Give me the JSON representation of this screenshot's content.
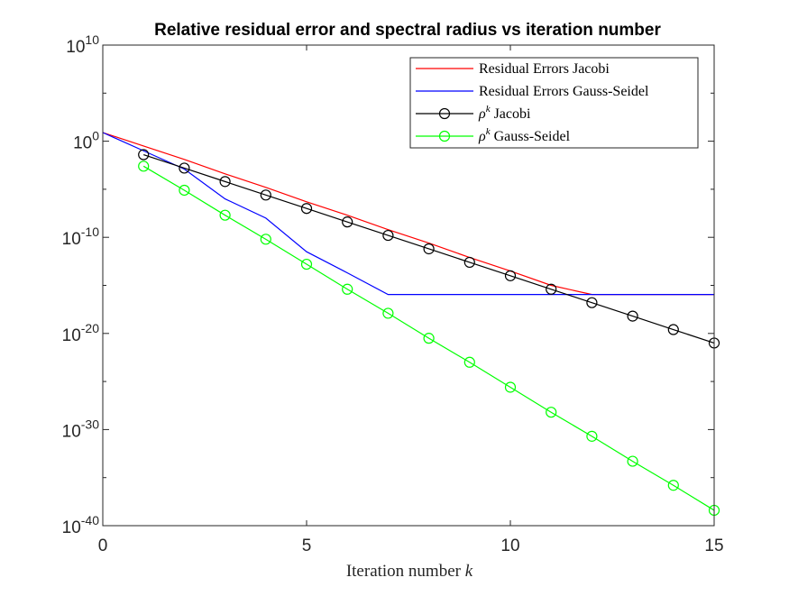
{
  "chart_data": {
    "type": "line",
    "title": "Relative residual error and spectral radius vs iteration number",
    "xlabel": "Iteration number",
    "xlabel_var": "k",
    "ylabel": "",
    "xlim": [
      0,
      15
    ],
    "ylim_log10": [
      -40,
      10
    ],
    "y_scale": "log",
    "x_ticks": [
      0,
      5,
      10,
      15
    ],
    "x_tick_labels": [
      "0",
      "5",
      "10",
      "15"
    ],
    "y_tick_exponents": [
      10,
      0,
      -10,
      -20,
      -30,
      -40
    ],
    "y_tick_base": "10",
    "grid": false,
    "legend_position": "top-right",
    "series": [
      {
        "name": "Residual Errors Jacobi",
        "color": "#ff0000",
        "marker": "none",
        "x": [
          0,
          1,
          2,
          3,
          4,
          5,
          6,
          7,
          8,
          9,
          10,
          11,
          12,
          13,
          14,
          15
        ],
        "log10_y": [
          0.9,
          -0.5,
          -1.9,
          -3.4,
          -4.8,
          -6.3,
          -7.7,
          -9.2,
          -10.6,
          -12.1,
          -13.5,
          -15.0,
          -15.95,
          -15.95,
          -15.95,
          -15.95
        ]
      },
      {
        "name": "Residual Errors Gauss-Seidel",
        "color": "#0000ff",
        "marker": "none",
        "x": [
          0,
          1,
          2,
          3,
          4,
          5,
          6,
          7,
          8,
          9,
          10,
          11,
          12,
          13,
          14,
          15
        ],
        "log10_y": [
          0.9,
          -1.0,
          -2.9,
          -6.0,
          -8.0,
          -11.5,
          -13.7,
          -15.95,
          -15.95,
          -15.95,
          -15.95,
          -15.95,
          -15.95,
          -15.95,
          -15.95,
          -15.95
        ]
      },
      {
        "name": "ρ^k Jacobi",
        "label_rho": "ρ",
        "label_sup": "k",
        "label_rest": "Jacobi",
        "color": "#000000",
        "marker": "circle",
        "x": [
          1,
          2,
          3,
          4,
          5,
          6,
          7,
          8,
          9,
          10,
          11,
          12,
          13,
          14,
          15
        ],
        "log10_y": [
          -1.4,
          -2.8,
          -4.2,
          -5.6,
          -7.0,
          -8.4,
          -9.8,
          -11.2,
          -12.6,
          -14.0,
          -15.4,
          -16.8,
          -18.2,
          -19.6,
          -21.0
        ]
      },
      {
        "name": "ρ^k Gauss-Seidel",
        "label_rho": "ρ",
        "label_sup": "k",
        "label_rest": "Gauss-Seidel",
        "color": "#00ff00",
        "marker": "circle",
        "x": [
          1,
          2,
          3,
          4,
          5,
          6,
          7,
          8,
          9,
          10,
          11,
          12,
          13,
          14,
          15
        ],
        "log10_y": [
          -2.6,
          -5.1,
          -7.7,
          -10.2,
          -12.8,
          -15.4,
          -17.9,
          -20.5,
          -23.0,
          -25.6,
          -28.2,
          -30.7,
          -33.3,
          -35.8,
          -38.4
        ]
      }
    ]
  }
}
